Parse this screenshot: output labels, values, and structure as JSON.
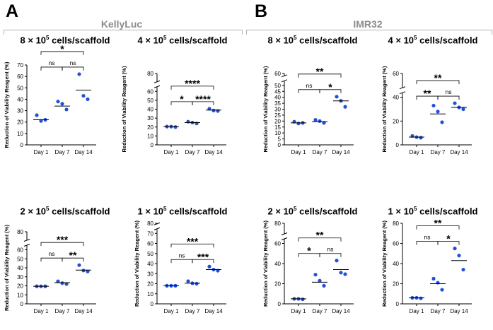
{
  "panels": [
    {
      "letter": "A",
      "group": "KellyLuc"
    },
    {
      "letter": "B",
      "group": "IMR32"
    }
  ],
  "ylabel": "Reduction of Viability Reagent (%)",
  "chart_data": [
    {
      "type": "scatter",
      "panel": "A",
      "title": {
        "mantissa": "8",
        "times": "×",
        "base": "10",
        "exp": "5",
        "unit": "cells/scaffold"
      },
      "categories": [
        "Day 1",
        "Day 7",
        "Day 14"
      ],
      "ylabel": "Reduction of Viability Reagent (%)",
      "yticks": [
        0,
        10,
        20,
        30,
        40,
        50,
        60,
        70
      ],
      "ylim": [
        0,
        70
      ],
      "axis_break": false,
      "points": [
        [
          26,
          21,
          22
        ],
        [
          38,
          36,
          31
        ],
        [
          62,
          43,
          40
        ]
      ],
      "means": [
        22,
        34,
        48
      ],
      "comparisons": [
        {
          "pair": [
            1,
            2
          ],
          "label": "ns"
        },
        {
          "pair": [
            2,
            3
          ],
          "label": "ns"
        },
        {
          "pair": [
            1,
            3
          ],
          "label": "*"
        }
      ]
    },
    {
      "type": "scatter",
      "panel": "A",
      "title": {
        "mantissa": "4",
        "times": "×",
        "base": "10",
        "exp": "5",
        "unit": "cells/scaffold"
      },
      "categories": [
        "Day 1",
        "Day 7",
        "Day 14"
      ],
      "ylabel": "Reduction of Viability Reagent (%)",
      "yticks": [
        0,
        10,
        20,
        30,
        40,
        50,
        60,
        80
      ],
      "ylim": [
        0,
        80
      ],
      "axis_break": true,
      "points": [
        [
          20.5,
          20.5,
          20.0
        ],
        [
          26,
          25,
          24
        ],
        [
          40.5,
          38.5,
          38
        ]
      ],
      "means": [
        20.5,
        25,
        39
      ],
      "comparisons": [
        {
          "pair": [
            1,
            2
          ],
          "label": "*"
        },
        {
          "pair": [
            2,
            3
          ],
          "label": "****"
        },
        {
          "pair": [
            1,
            3
          ],
          "label": "****"
        }
      ]
    },
    {
      "type": "scatter",
      "panel": "B",
      "title": {
        "mantissa": "8",
        "times": "×",
        "base": "10",
        "exp": "5",
        "unit": "cells/scaffold"
      },
      "categories": [
        "Day 1",
        "Day 7",
        "Day 14"
      ],
      "ylabel": "Reduction of Viability Reagent (%)",
      "yticks": [
        0,
        5,
        10,
        15,
        20,
        25,
        30,
        35,
        40,
        45,
        50,
        60
      ],
      "ylim": [
        0,
        60
      ],
      "axis_break": true,
      "points": [
        [
          19.5,
          18,
          18.5
        ],
        [
          21,
          20,
          18.5
        ],
        [
          40.5,
          37,
          32
        ]
      ],
      "means": [
        18.5,
        19.5,
        37
      ],
      "comparisons": [
        {
          "pair": [
            1,
            2
          ],
          "label": "ns"
        },
        {
          "pair": [
            2,
            3
          ],
          "label": "*"
        },
        {
          "pair": [
            1,
            3
          ],
          "label": "**"
        }
      ]
    },
    {
      "type": "scatter",
      "panel": "B",
      "title": {
        "mantissa": "4",
        "times": "×",
        "base": "10",
        "exp": "5",
        "unit": "cells/scaffold"
      },
      "categories": [
        "Day 1",
        "Day 7",
        "Day 14"
      ],
      "ylabel": "Reduction of Viability Reagent (%)",
      "yticks": [
        0,
        20,
        40,
        60
      ],
      "ylim": [
        0,
        60
      ],
      "axis_break": true,
      "points": [
        [
          7.5,
          6.5,
          6
        ],
        [
          33,
          28,
          19
        ],
        [
          35,
          31.5,
          30
        ]
      ],
      "means": [
        6.5,
        26,
        31.5
      ],
      "comparisons": [
        {
          "pair": [
            1,
            2
          ],
          "label": "**"
        },
        {
          "pair": [
            2,
            3
          ],
          "label": "ns"
        },
        {
          "pair": [
            1,
            3
          ],
          "label": "**"
        }
      ]
    },
    {
      "type": "scatter",
      "panel": "A",
      "title": {
        "mantissa": "2",
        "times": "×",
        "base": "10",
        "exp": "5",
        "unit": "cells/scaffold"
      },
      "categories": [
        "Day 1",
        "Day 7",
        "Day 14"
      ],
      "ylabel": "Reduction of Viability Reagent (%)",
      "yticks": [
        0,
        10,
        20,
        30,
        40,
        50,
        60,
        80
      ],
      "ylim": [
        0,
        80
      ],
      "axis_break": true,
      "points": [
        [
          19.5,
          19.5,
          19.5
        ],
        [
          25,
          23,
          22
        ],
        [
          43,
          37,
          36
        ]
      ],
      "means": [
        19.5,
        23.5,
        37.5
      ],
      "comparisons": [
        {
          "pair": [
            1,
            2
          ],
          "label": "ns"
        },
        {
          "pair": [
            2,
            3
          ],
          "label": "**"
        },
        {
          "pair": [
            1,
            3
          ],
          "label": "***"
        }
      ]
    },
    {
      "type": "scatter",
      "panel": "A",
      "title": {
        "mantissa": "1",
        "times": "×",
        "base": "10",
        "exp": "5",
        "unit": "cells/scaffold"
      },
      "categories": [
        "Day 1",
        "Day 7",
        "Day 14"
      ],
      "ylabel": "Reduction of Viability Reagent (%)",
      "yticks": [
        0,
        10,
        20,
        30,
        40,
        50,
        60,
        70,
        80
      ],
      "ylim": [
        0,
        80
      ],
      "axis_break": true,
      "points": [
        [
          18,
          18,
          18
        ],
        [
          22.5,
          20.5,
          20
        ],
        [
          37,
          34,
          33
        ]
      ],
      "means": [
        18,
        20.5,
        34
      ],
      "comparisons": [
        {
          "pair": [
            1,
            2
          ],
          "label": "ns"
        },
        {
          "pair": [
            2,
            3
          ],
          "label": "***"
        },
        {
          "pair": [
            1,
            3
          ],
          "label": "***"
        }
      ]
    },
    {
      "type": "scatter",
      "panel": "B",
      "title": {
        "mantissa": "2",
        "times": "×",
        "base": "10",
        "exp": "5",
        "unit": "cells/scaffold"
      },
      "categories": [
        "Day 1",
        "Day 7",
        "Day 14"
      ],
      "ylabel": "Reduction of Viability Reagent (%)",
      "yticks": [
        0,
        20,
        40,
        60,
        80
      ],
      "ylim": [
        0,
        80
      ],
      "axis_break": true,
      "points": [
        [
          5,
          5,
          4.5
        ],
        [
          29,
          23,
          18
        ],
        [
          43,
          31,
          29.5
        ]
      ],
      "means": [
        5,
        21.5,
        34
      ],
      "comparisons": [
        {
          "pair": [
            1,
            2
          ],
          "label": "*"
        },
        {
          "pair": [
            2,
            3
          ],
          "label": "ns"
        },
        {
          "pair": [
            1,
            3
          ],
          "label": "**"
        }
      ]
    },
    {
      "type": "scatter",
      "panel": "B",
      "title": {
        "mantissa": "1",
        "times": "×",
        "base": "10",
        "exp": "5",
        "unit": "cells/scaffold"
      },
      "categories": [
        "Day 1",
        "Day 7",
        "Day 14"
      ],
      "ylabel": "Reduction of Viability Reagent (%)",
      "yticks": [
        0,
        20,
        40,
        60,
        80
      ],
      "ylim": [
        0,
        80
      ],
      "axis_break": false,
      "points": [
        [
          6,
          6,
          5.5
        ],
        [
          25,
          21,
          14
        ],
        [
          55,
          48,
          34
        ]
      ],
      "means": [
        6,
        20,
        43
      ],
      "comparisons": [
        {
          "pair": [
            1,
            2
          ],
          "label": "ns"
        },
        {
          "pair": [
            2,
            3
          ],
          "label": "*"
        },
        {
          "pair": [
            1,
            3
          ],
          "label": "**"
        }
      ]
    }
  ],
  "colors": {
    "point": "#2450d6",
    "axis": "#000000",
    "group_title": "#8c8c8c",
    "bracket": "#b3b3b3"
  }
}
